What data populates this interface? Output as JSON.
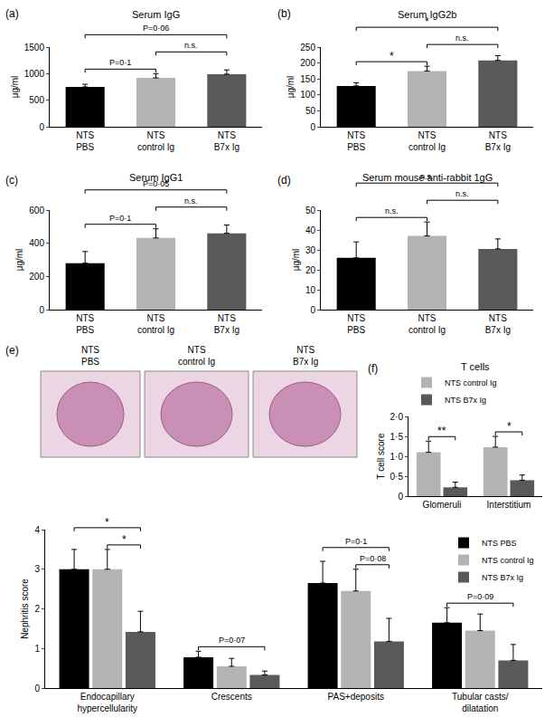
{
  "chart_data": [
    {
      "label": "(a)",
      "type": "bar",
      "title": "Serum IgG",
      "y_label": "μg/ml",
      "categories": [
        "NTS\nPBS",
        "NTS\ncontrol Ig",
        "NTS\nB7x Ig"
      ],
      "values": [
        750,
        920,
        990
      ],
      "errors": [
        50,
        80,
        80
      ],
      "colors": [
        "#000000",
        "#b3b3b3",
        "#595959"
      ],
      "ylim": [
        0,
        1500
      ],
      "yticks": [
        0,
        500,
        1000,
        1500
      ],
      "grid": false,
      "comparisons": [
        {
          "from": "NTS\nPBS",
          "to": "NTS\ncontrol Ig",
          "label": "P=0·1"
        },
        {
          "from": "NTS\ncontrol Ig",
          "to": "NTS\nB7x Ig",
          "label": "n.s."
        },
        {
          "from": "NTS\nPBS",
          "to": "NTS\nB7x Ig",
          "label": "P=0·06"
        }
      ]
    },
    {
      "label": "(b)",
      "type": "bar",
      "title": "Serum IgG2b",
      "y_label": "μg/ml",
      "categories": [
        "NTS\nPBS",
        "NTS\ncontrol Ig",
        "NTS\nB7x Ig"
      ],
      "values": [
        128,
        175,
        208
      ],
      "errors": [
        10,
        15,
        15
      ],
      "colors": [
        "#000000",
        "#b3b3b3",
        "#595959"
      ],
      "ylim": [
        0,
        250
      ],
      "yticks": [
        0,
        50,
        100,
        150,
        200,
        250
      ],
      "grid": false,
      "comparisons": [
        {
          "from": "NTS\nPBS",
          "to": "NTS\ncontrol Ig",
          "label": "*"
        },
        {
          "from": "NTS\ncontrol Ig",
          "to": "NTS\nB7x Ig",
          "label": "n.s."
        },
        {
          "from": "NTS\nPBS",
          "to": "NTS\nB7x Ig",
          "label": "*"
        }
      ]
    },
    {
      "label": "(c)",
      "type": "bar",
      "title": "Serum IgG1",
      "y_label": "μg/ml",
      "categories": [
        "NTS\nPBS",
        "NTS\ncontrol Ig",
        "NTS\nB7x Ig"
      ],
      "values": [
        280,
        432,
        460
      ],
      "errors": [
        70,
        55,
        50
      ],
      "colors": [
        "#000000",
        "#b3b3b3",
        "#595959"
      ],
      "ylim": [
        0,
        600
      ],
      "yticks": [
        0,
        200,
        400,
        600
      ],
      "grid": false,
      "comparisons": [
        {
          "from": "NTS\nPBS",
          "to": "NTS\ncontrol Ig",
          "label": "P=0·1"
        },
        {
          "from": "NTS\ncontrol Ig",
          "to": "NTS\nB7x Ig",
          "label": "n.s."
        },
        {
          "from": "NTS\nPBS",
          "to": "NTS\nB7x Ig",
          "label": "P=0·05"
        }
      ]
    },
    {
      "label": "(d)",
      "type": "bar",
      "title": "Serum mouse anti-rabbit 1gG",
      "y_label": "μg/ml",
      "categories": [
        "NTS\nPBS",
        "NTS\ncontrol Ig",
        "NTS\nB7x Ig"
      ],
      "values": [
        26,
        37,
        30.5
      ],
      "errors": [
        8,
        7,
        5
      ],
      "colors": [
        "#000000",
        "#b3b3b3",
        "#595959"
      ],
      "ylim": [
        0,
        50
      ],
      "yticks": [
        0,
        10,
        20,
        30,
        40,
        50
      ],
      "grid": false,
      "comparisons": [
        {
          "from": "NTS\nPBS",
          "to": "NTS\ncontrol Ig",
          "label": "n.s."
        },
        {
          "from": "NTS\ncontrol Ig",
          "to": "NTS\nB7x Ig",
          "label": "n.s."
        },
        {
          "from": "NTS\nPBS",
          "to": "NTS\nB7x Ig",
          "label": "n.s."
        }
      ]
    },
    {
      "label": "(e)",
      "type": "bar",
      "y_label": "Nephritis score",
      "image_labels": [
        "NTS\nPBS",
        "NTS\ncontrol Ig",
        "NTS\nB7x Ig"
      ],
      "categories": [
        "Endocapillary\nhypercellularity",
        "Crescents",
        "PAS+deposits",
        "Tubular casts/\ndilatation"
      ],
      "series": [
        {
          "name": "NTS PBS",
          "color": "#000000",
          "values": [
            3.0,
            0.78,
            2.65,
            1.65
          ],
          "errors": [
            0.5,
            0.15,
            0.55,
            0.38
          ]
        },
        {
          "name": "NTS control Ig",
          "color": "#b3b3b3",
          "values": [
            3.0,
            0.55,
            2.45,
            1.45
          ],
          "errors": [
            0.5,
            0.2,
            0.55,
            0.42
          ]
        },
        {
          "name": "NTS B7x Ig",
          "color": "#595959",
          "values": [
            1.42,
            0.33,
            1.18,
            0.7
          ],
          "errors": [
            0.52,
            0.1,
            0.58,
            0.4
          ]
        }
      ],
      "ylim": [
        0,
        4
      ],
      "yticks": [
        0,
        1,
        2,
        3,
        4
      ],
      "grid": false,
      "legend": "upper right",
      "comparisons": [
        {
          "category": "Endocapillary\nhypercellularity",
          "from": "NTS PBS",
          "to": "NTS B7x Ig",
          "label": "*"
        },
        {
          "category": "Endocapillary\nhypercellularity",
          "from": "NTS control Ig",
          "to": "NTS B7x Ig",
          "label": "*"
        },
        {
          "category": "Crescents",
          "from": "NTS PBS",
          "to": "NTS B7x Ig",
          "label": "P=0·07"
        },
        {
          "category": "PAS+deposits",
          "from": "NTS PBS",
          "to": "NTS B7x Ig",
          "label": "P=0·1"
        },
        {
          "category": "PAS+deposits",
          "from": "NTS control Ig",
          "to": "NTS B7x Ig",
          "label": "P=0·08"
        },
        {
          "category": "Tubular casts/\ndilatation",
          "from": "NTS PBS",
          "to": "NTS B7x Ig",
          "label": "P=0·09"
        }
      ]
    },
    {
      "label": "(f)",
      "type": "bar",
      "title": "T cells",
      "y_label": "T cell score",
      "categories": [
        "Glomeruli",
        "Interstitium"
      ],
      "series": [
        {
          "name": "NTS control Ig",
          "color": "#b3b3b3",
          "values": [
            1.1,
            1.23
          ],
          "errors": [
            0.28,
            0.27
          ]
        },
        {
          "name": "NTS B7x Ig",
          "color": "#595959",
          "values": [
            0.22,
            0.4
          ],
          "errors": [
            0.13,
            0.13
          ]
        }
      ],
      "ylim": [
        0,
        2
      ],
      "yticks": [
        0,
        {
          "value": 0.5,
          "label": "0·5"
        },
        {
          "value": 1,
          "label": "1·0"
        },
        {
          "value": 1.5,
          "label": "1·5"
        },
        {
          "value": 2,
          "label": "2·0"
        }
      ],
      "grid": false,
      "legend": "top",
      "comparisons": [
        {
          "category": "Glomeruli",
          "from": "NTS control Ig",
          "to": "NTS B7x Ig",
          "label": "**"
        },
        {
          "category": "Interstitium",
          "from": "NTS control Ig",
          "to": "NTS B7x Ig",
          "label": "*"
        }
      ]
    }
  ]
}
